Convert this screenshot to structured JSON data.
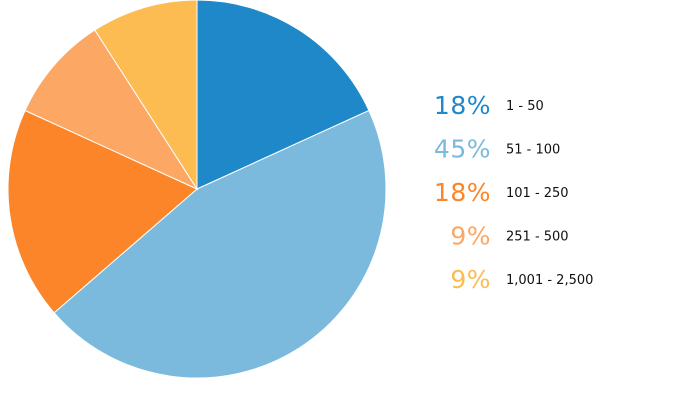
{
  "chart_data": {
    "type": "pie",
    "title": "",
    "start_angle_deg": 0,
    "direction": "clockwise",
    "slices": [
      {
        "label": "1 - 50",
        "value": 18,
        "percent_text": "18%",
        "color": "#1f88c9"
      },
      {
        "label": "51 - 100",
        "value": 45,
        "percent_text": "45%",
        "color": "#7bbadc"
      },
      {
        "label": "101 - 250",
        "value": 18,
        "percent_text": "18%",
        "color": "#fc8529"
      },
      {
        "label": "251 - 500",
        "value": 9,
        "percent_text": "9%",
        "color": "#fca764"
      },
      {
        "label": "1,001 - 2,500",
        "value": 9,
        "percent_text": "9%",
        "color": "#fcbc52"
      }
    ],
    "legend_position": "right"
  }
}
